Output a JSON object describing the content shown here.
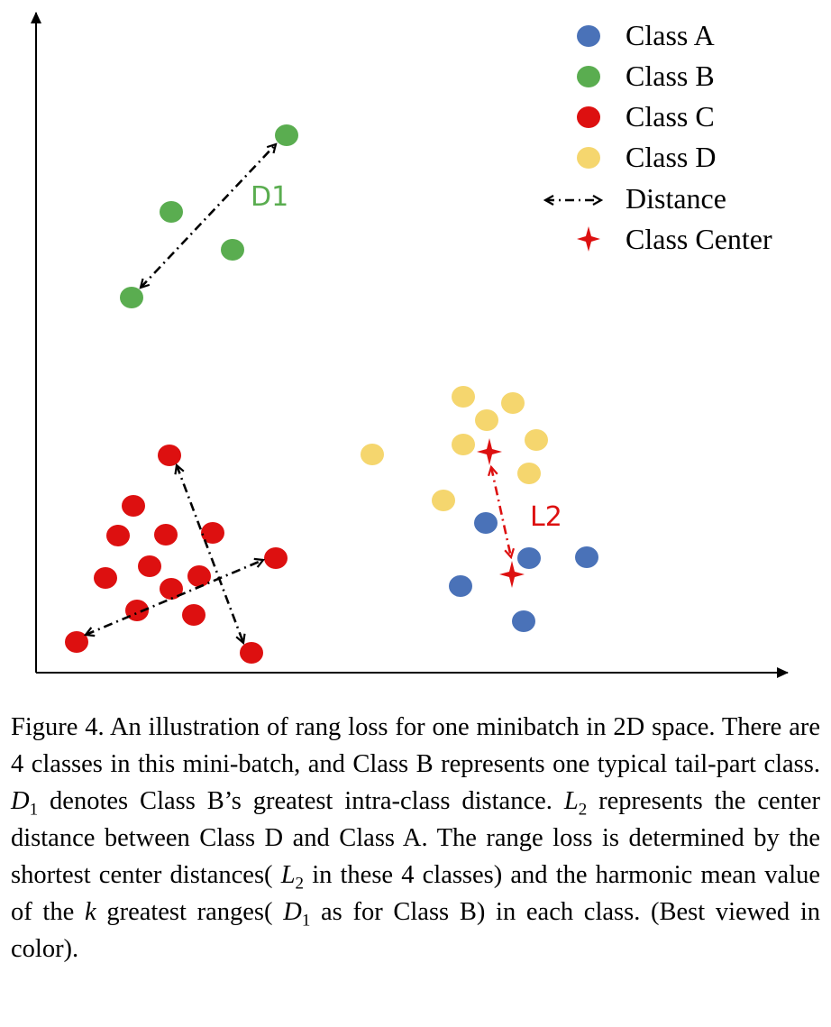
{
  "legend": {
    "items": [
      {
        "label": "Class A",
        "marker": "circle",
        "color": "#4a72b8"
      },
      {
        "label": "Class B",
        "marker": "circle",
        "color": "#5aad50"
      },
      {
        "label": "Class C",
        "marker": "circle",
        "color": "#dd1010"
      },
      {
        "label": "Class D",
        "marker": "circle",
        "color": "#f5d66e"
      },
      {
        "label": "Distance",
        "marker": "dashdot-double-arrow",
        "color": "#000000"
      },
      {
        "label": "Class Center",
        "marker": "four-point-star",
        "color": "#dd1010"
      }
    ]
  },
  "annotations": {
    "d1": {
      "text": "D1",
      "color": "#5aad50"
    },
    "l2": {
      "text": "L2",
      "color": "#dd1010"
    }
  },
  "caption": {
    "lead": "Figure 4. An illustration of rang loss for one minibatch in 2D space.  There are 4 classes in this mini-batch, and Class B represents one typical tail-part class.",
    "d1_sym": "D",
    "d1_sub": "1",
    "d1_text": "denotes Class B’s greatest intra-class distance.",
    "l2_sym": "L",
    "l2_sub": "2",
    "l2_text": "represents the center distance between Class D and Class A. The range loss is determined by the shortest center distances(",
    "l2b_sym": "L",
    "l2b_sub": "2",
    "mid_text": "in these 4 classes) and the harmonic mean value of the",
    "k_sym": "k",
    "k_text": "greatest ranges(",
    "d1b_sym": "D",
    "d1b_sub": "1",
    "tail_text": "as for Class B) in each class. (Best viewed in color)."
  }
}
